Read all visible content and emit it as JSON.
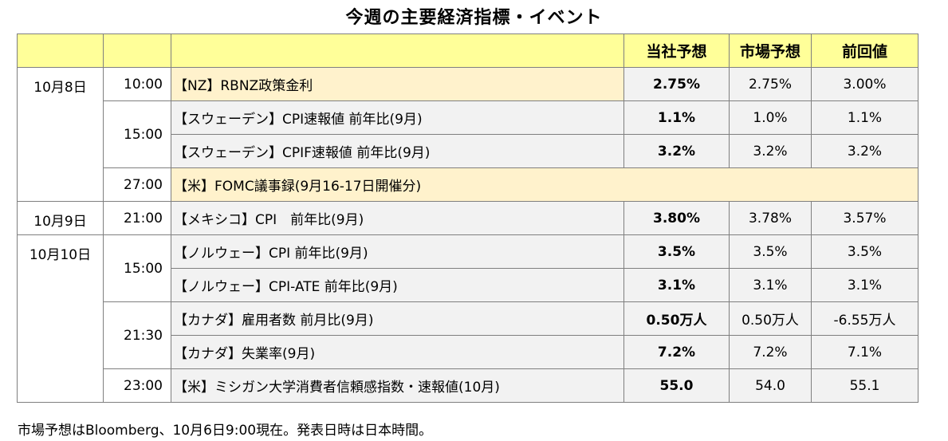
{
  "title": "今週の主要経済指標・イベント",
  "headers": {
    "own_forecast": "当社予想",
    "market_forecast": "市場予想",
    "previous": "前回値"
  },
  "rows": [
    {
      "date": "10月8日",
      "time": "10:00",
      "event": "【NZ】RBNZ政策金利",
      "own": "2.75%",
      "market": "2.75%",
      "prev": "3.00%"
    },
    {
      "date": "",
      "time": "15:00",
      "event": "【スウェーデン】CPI速報値 前年比(9月)",
      "own": "1.1%",
      "market": "1.0%",
      "prev": "1.1%"
    },
    {
      "date": "",
      "time": "",
      "event": "【スウェーデン】CPIF速報値 前年比(9月)",
      "own": "3.2%",
      "market": "3.2%",
      "prev": "3.2%"
    },
    {
      "date": "",
      "time": "27:00",
      "event": "【米】FOMC議事録(9月16-17日開催分)",
      "own": "",
      "market": "",
      "prev": ""
    },
    {
      "date": "10月9日",
      "time": "21:00",
      "event": "【メキシコ】CPI　前年比(9月)",
      "own": "3.80%",
      "market": "3.78%",
      "prev": "3.57%"
    },
    {
      "date": "10月10日",
      "time": "15:00",
      "event": "【ノルウェー】CPI 前年比(9月)",
      "own": "3.5%",
      "market": "3.5%",
      "prev": "3.5%"
    },
    {
      "date": "",
      "time": "",
      "event": "【ノルウェー】CPI-ATE 前年比(9月)",
      "own": "3.1%",
      "market": "3.1%",
      "prev": "3.1%"
    },
    {
      "date": "",
      "time": "21:30",
      "event": "【カナダ】雇用者数 前月比(9月)",
      "own": "0.50万人",
      "market": "0.50万人",
      "prev": "-6.55万人"
    },
    {
      "date": "",
      "time": "",
      "event": "【カナダ】失業率(9月)",
      "own": "7.2%",
      "market": "7.2%",
      "prev": "7.1%"
    },
    {
      "date": "",
      "time": "23:00",
      "event": "【米】ミシガン大学消費者信頼感指数・速報値(10月)",
      "own": "55.0",
      "market": "54.0",
      "prev": "55.1"
    }
  ],
  "footnote": "市場予想はBloomberg、10月6日9:00現在。発表日時は日本時間。"
}
